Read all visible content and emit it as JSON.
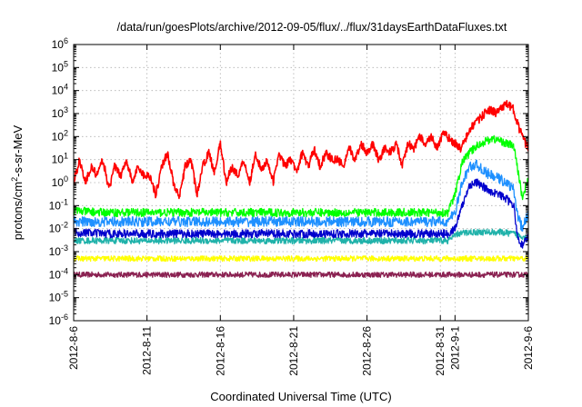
{
  "chart_data": {
    "type": "line",
    "title": "/data/run/goesPlots/archive/2012-09-05/flux/../flux/31daysEarthDataFluxes.txt",
    "xlabel": "Coordinated Universal Time (UTC)",
    "ylabel": {
      "base": "protons/cm",
      "sup": "2",
      "rest": "-s-sr-MeV"
    },
    "yscale": "log",
    "ylim": [
      1e-06,
      1000000.0
    ],
    "xlim": [
      0,
      31
    ],
    "grid": true,
    "x_ticks": [
      {
        "value": 0,
        "label": "2012-8-6"
      },
      {
        "value": 5,
        "label": "2012-8-11"
      },
      {
        "value": 10,
        "label": "2012-8-16"
      },
      {
        "value": 15,
        "label": "2012-8-21"
      },
      {
        "value": 20,
        "label": "2012-8-26"
      },
      {
        "value": 25,
        "label": "2012-8-31"
      },
      {
        "value": 26,
        "label": "2012-9-1"
      },
      {
        "value": 31,
        "label": "2012-9-6"
      }
    ],
    "y_ticks": [
      {
        "exp": -6,
        "base": "10",
        "sup": "-6"
      },
      {
        "exp": -5,
        "base": "10",
        "sup": "-5"
      },
      {
        "exp": -4,
        "base": "10",
        "sup": "-4"
      },
      {
        "exp": -3,
        "base": "10",
        "sup": "-3"
      },
      {
        "exp": -2,
        "base": "10",
        "sup": "-2"
      },
      {
        "exp": -1,
        "base": "10",
        "sup": "-1"
      },
      {
        "exp": 0,
        "base": "10",
        "sup": "0"
      },
      {
        "exp": 1,
        "base": "10",
        "sup": "1"
      },
      {
        "exp": 2,
        "base": "10",
        "sup": "2"
      },
      {
        "exp": 3,
        "base": "10",
        "sup": "3"
      },
      {
        "exp": 4,
        "base": "10",
        "sup": "4"
      },
      {
        "exp": 5,
        "base": "10",
        "sup": "5"
      },
      {
        "exp": 6,
        "base": "10",
        "sup": "6"
      }
    ],
    "series": [
      {
        "color": "#8b2252",
        "x": [
          0,
          2,
          4,
          6,
          8,
          10,
          12,
          14,
          16,
          18,
          20,
          22,
          24,
          26,
          27,
          28,
          29,
          30,
          31
        ],
        "y": [
          0.0001,
          0.0001,
          0.0001,
          0.0001,
          0.0001,
          0.0001,
          0.0001,
          0.0001,
          0.0001,
          0.0001,
          0.0001,
          0.0001,
          0.0001,
          0.0001,
          0.0001,
          0.0001,
          0.0001,
          0.0001,
          0.0001
        ]
      },
      {
        "color": "#ffff00",
        "x": [
          0,
          2,
          4,
          6,
          8,
          10,
          12,
          14,
          16,
          18,
          20,
          22,
          24,
          26,
          27,
          28,
          29,
          30,
          31
        ],
        "y": [
          0.0005,
          0.0005,
          0.0005,
          0.0005,
          0.0005,
          0.0005,
          0.0005,
          0.0005,
          0.0005,
          0.0005,
          0.0005,
          0.0005,
          0.0005,
          0.0005,
          0.0005,
          0.0005,
          0.0005,
          0.0005,
          0.0005
        ]
      },
      {
        "color": "#20b2aa",
        "x": [
          0,
          2,
          4,
          6,
          8,
          10,
          12,
          14,
          16,
          18,
          20,
          22,
          24,
          25.5,
          26.2,
          27,
          28,
          29,
          30,
          31
        ],
        "y": [
          0.003,
          0.003,
          0.003,
          0.003,
          0.003,
          0.003,
          0.003,
          0.003,
          0.003,
          0.003,
          0.003,
          0.003,
          0.003,
          0.003,
          0.006,
          0.007,
          0.007,
          0.007,
          0.006,
          0.004
        ]
      },
      {
        "color": "#00ff00",
        "x": [
          0,
          2,
          4,
          6,
          8,
          10,
          12,
          14,
          16,
          18,
          20,
          22,
          24,
          25.5,
          26,
          26.5,
          27,
          27.5,
          28,
          28.5,
          29,
          29.5,
          30,
          30.3,
          30.6,
          31
        ],
        "y": [
          0.06,
          0.05,
          0.05,
          0.05,
          0.05,
          0.05,
          0.05,
          0.05,
          0.05,
          0.05,
          0.05,
          0.05,
          0.05,
          0.05,
          0.3,
          8,
          20,
          40,
          60,
          80,
          70,
          50,
          40,
          3,
          0.2,
          2
        ]
      },
      {
        "color": "#1e90ff",
        "x": [
          0,
          2,
          4,
          6,
          8,
          10,
          12,
          14,
          16,
          18,
          20,
          22,
          24,
          25.5,
          26,
          26.5,
          27,
          27.5,
          28,
          28.5,
          29,
          29.5,
          30,
          30.3,
          30.6,
          31
        ],
        "y": [
          0.02,
          0.02,
          0.02,
          0.02,
          0.02,
          0.02,
          0.02,
          0.02,
          0.02,
          0.02,
          0.02,
          0.02,
          0.02,
          0.02,
          0.05,
          1,
          5,
          6,
          3,
          2,
          1.5,
          1,
          0.5,
          0.03,
          0.01,
          0.05
        ]
      },
      {
        "color": "#0000cd",
        "x": [
          0,
          2,
          4,
          6,
          8,
          10,
          12,
          14,
          16,
          18,
          20,
          22,
          24,
          25.5,
          26,
          26.5,
          27,
          27.5,
          28,
          28.5,
          29,
          29.5,
          30,
          30.3,
          30.6,
          31
        ],
        "y": [
          0.007,
          0.006,
          0.006,
          0.006,
          0.006,
          0.006,
          0.006,
          0.006,
          0.006,
          0.006,
          0.006,
          0.006,
          0.006,
          0.006,
          0.01,
          0.1,
          0.8,
          1,
          0.6,
          0.4,
          0.3,
          0.2,
          0.1,
          0.003,
          0.002,
          0.005
        ]
      },
      {
        "color": "#ff0000",
        "x": [
          0,
          0.4,
          0.8,
          1.2,
          1.6,
          2.0,
          2.4,
          2.8,
          3.2,
          3.6,
          4.0,
          4.4,
          4.8,
          5.2,
          5.6,
          6.0,
          6.4,
          6.8,
          7.2,
          7.6,
          8.0,
          8.4,
          8.8,
          9.2,
          9.6,
          10.0,
          10.4,
          10.8,
          11.2,
          11.6,
          12.0,
          12.4,
          12.8,
          13.2,
          13.6,
          14.0,
          14.4,
          14.8,
          15.2,
          15.6,
          16.0,
          16.4,
          16.8,
          17.2,
          17.6,
          18.0,
          18.4,
          18.8,
          19.2,
          19.6,
          20.0,
          20.4,
          20.8,
          21.2,
          21.6,
          22.0,
          22.4,
          22.8,
          23.2,
          23.6,
          24.0,
          24.4,
          24.8,
          25.2,
          25.6,
          26.0,
          26.4,
          26.8,
          27.2,
          27.6,
          28.0,
          28.4,
          28.8,
          29.2,
          29.6,
          30.0,
          30.4,
          30.8,
          31.0
        ],
        "y": [
          1,
          10,
          1,
          5,
          2,
          10,
          0.5,
          5,
          2,
          10,
          1,
          5,
          2,
          2,
          0.3,
          5,
          20,
          1,
          0.2,
          5,
          10,
          0.3,
          5,
          20,
          3,
          50,
          1,
          5,
          2,
          10,
          1,
          20,
          3,
          10,
          1,
          20,
          5,
          10,
          3,
          20,
          5,
          30,
          5,
          20,
          10,
          10,
          5,
          30,
          10,
          50,
          20,
          50,
          10,
          30,
          20,
          50,
          5,
          50,
          30,
          100,
          50,
          100,
          30,
          150,
          80,
          50,
          30,
          100,
          300,
          500,
          1000,
          1500,
          1000,
          2000,
          2500,
          1500,
          200,
          50,
          30
        ]
      }
    ]
  }
}
